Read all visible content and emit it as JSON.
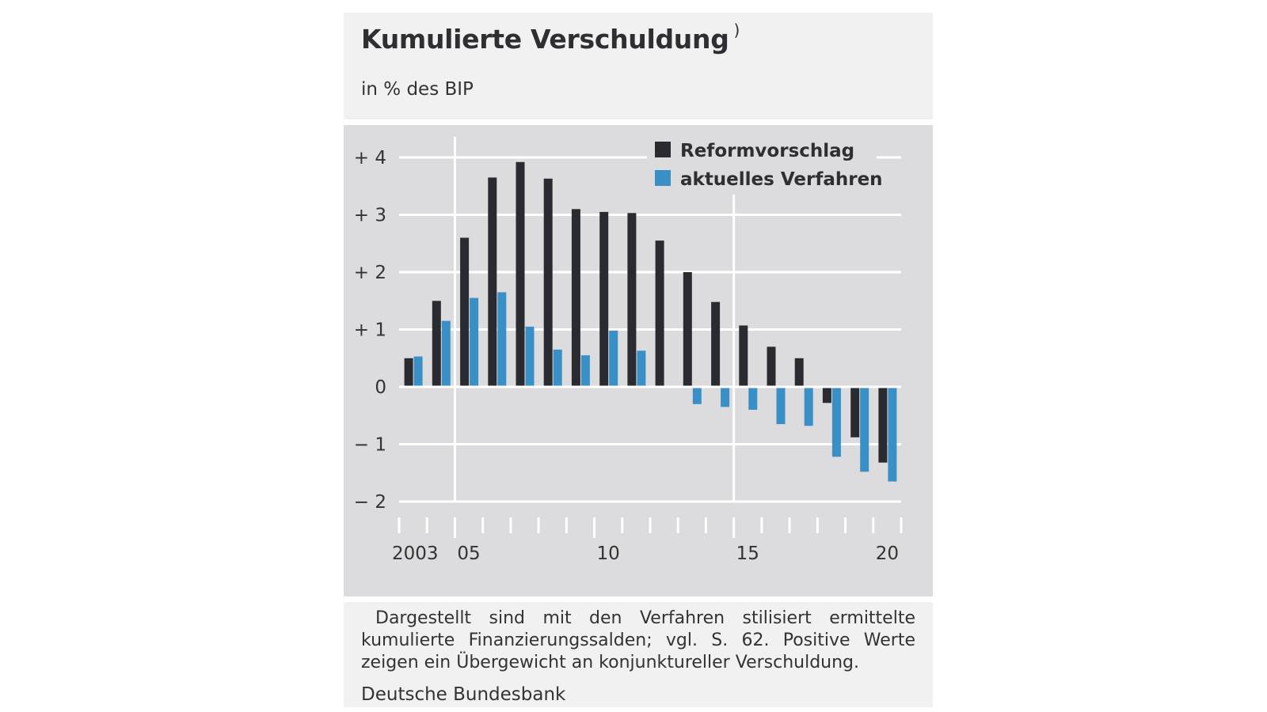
{
  "header": {
    "title": "Kumulierte Verschuldung",
    "title_marker": ")",
    "subtitle": "in % des BIP"
  },
  "footer": {
    "note": "Dargestellt sind mit den Verfahren stilisiert ermittelte kumulierte Finanzierungssalden; vgl. S. 62. Positive Werte zeigen ein Übergewicht an konjunktureller Verschuldung.",
    "source": "Deutsche Bundesbank"
  },
  "colors": {
    "series_reform": "#2a2b31",
    "series_aktuell": "#3a8fc7",
    "plot_background": "#dcdcde",
    "gridline": "#ffffff"
  },
  "chart_data": {
    "type": "bar",
    "categories": [
      "2003",
      "2004",
      "2005",
      "2006",
      "2007",
      "2008",
      "2009",
      "2010",
      "2011",
      "2012",
      "2013",
      "2014",
      "2015",
      "2016",
      "2017",
      "2018",
      "2019",
      "2020"
    ],
    "x_tick_labels": [
      {
        "year": "2003",
        "label": "2003"
      },
      {
        "year": "2005",
        "label": "05"
      },
      {
        "year": "2010",
        "label": "10"
      },
      {
        "year": "2015",
        "label": "15"
      },
      {
        "year": "2020",
        "label": "20"
      }
    ],
    "y_ticks": [
      {
        "value": 4,
        "label": "+ 4"
      },
      {
        "value": 3,
        "label": "+ 3"
      },
      {
        "value": 2,
        "label": "+ 2"
      },
      {
        "value": 1,
        "label": "+ 1"
      },
      {
        "value": 0,
        "label": "0"
      },
      {
        "value": -1,
        "label": "− 1"
      },
      {
        "value": -2,
        "label": "− 2"
      }
    ],
    "ylim": [
      -2.35,
      4.15
    ],
    "grid": true,
    "legend_position": "top-right",
    "series": [
      {
        "name": "Reformvorschlag",
        "values": [
          0.5,
          1.5,
          2.6,
          3.65,
          3.92,
          3.63,
          3.1,
          3.05,
          3.03,
          2.55,
          2.0,
          1.48,
          1.07,
          0.7,
          0.5,
          -0.28,
          -0.88,
          -1.32
        ]
      },
      {
        "name": "aktuelles Verfahren",
        "values": [
          0.53,
          1.15,
          1.55,
          1.65,
          1.05,
          0.65,
          0.55,
          0.98,
          0.63,
          0.0,
          -0.3,
          -0.35,
          -0.4,
          -0.65,
          -0.68,
          -1.22,
          -1.48,
          -1.65
        ]
      }
    ]
  }
}
